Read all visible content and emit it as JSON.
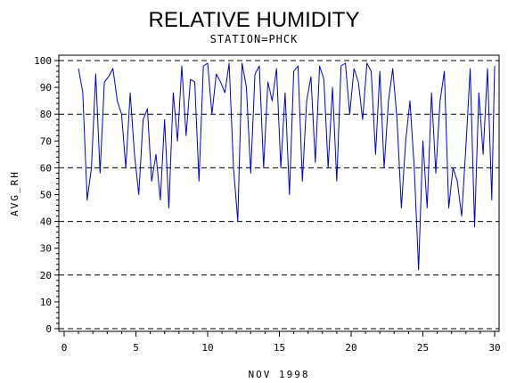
{
  "chart_data": {
    "type": "line",
    "title": "RELATIVE HUMIDITY",
    "subtitle": "STATION=PHCK",
    "xlabel": "NOV 1998",
    "ylabel": "AVG_RH",
    "xlim": [
      0,
      30
    ],
    "ylim": [
      0,
      100
    ],
    "x_ticks": [
      0,
      5,
      10,
      15,
      20,
      25,
      30
    ],
    "y_ticks": [
      0,
      10,
      20,
      30,
      40,
      50,
      60,
      70,
      80,
      90,
      100
    ],
    "reference_lines": [
      0,
      20,
      40,
      60,
      80,
      100
    ],
    "grid": false,
    "series": [
      {
        "color": "#0000cc",
        "x": [
          1.0,
          1.3,
          1.6,
          1.9,
          2.2,
          2.5,
          2.8,
          3.1,
          3.4,
          3.7,
          4.0,
          4.3,
          4.6,
          4.9,
          5.2,
          5.5,
          5.8,
          6.1,
          6.4,
          6.7,
          7.0,
          7.3,
          7.6,
          7.9,
          8.2,
          8.5,
          8.8,
          9.1,
          9.4,
          9.7,
          10.0,
          10.3,
          10.6,
          10.9,
          11.2,
          11.5,
          11.8,
          12.1,
          12.4,
          12.7,
          13.0,
          13.3,
          13.6,
          13.9,
          14.2,
          14.5,
          14.8,
          15.1,
          15.4,
          15.7,
          16.0,
          16.3,
          16.6,
          16.9,
          17.2,
          17.5,
          17.8,
          18.1,
          18.4,
          18.7,
          19.0,
          19.3,
          19.6,
          19.9,
          20.2,
          20.5,
          20.8,
          21.1,
          21.4,
          21.7,
          22.0,
          22.3,
          22.6,
          22.9,
          23.2,
          23.5,
          23.8,
          24.1,
          24.4,
          24.7,
          25.0,
          25.3,
          25.6,
          25.9,
          26.2,
          26.5,
          26.8,
          27.1,
          27.4,
          27.7,
          28.0,
          28.3,
          28.6,
          28.9,
          29.2,
          29.5,
          29.8,
          30.0
        ],
        "values": [
          97,
          88,
          48,
          60,
          95,
          58,
          92,
          94,
          97,
          85,
          80,
          60,
          88,
          65,
          50,
          78,
          82,
          55,
          65,
          48,
          78,
          45,
          88,
          70,
          98,
          72,
          93,
          92,
          55,
          98,
          99,
          80,
          95,
          92,
          88,
          99,
          60,
          40,
          99,
          90,
          58,
          95,
          98,
          60,
          92,
          85,
          97,
          60,
          88,
          50,
          96,
          98,
          55,
          85,
          94,
          62,
          98,
          93,
          60,
          90,
          55,
          98,
          99,
          80,
          97,
          92,
          78,
          99,
          96,
          65,
          96,
          60,
          85,
          97,
          78,
          45,
          70,
          85,
          60,
          22,
          70,
          45,
          88,
          58,
          85,
          96,
          45,
          60,
          55,
          42,
          68,
          97,
          38,
          88,
          65,
          97,
          48,
          98
        ]
      }
    ]
  }
}
